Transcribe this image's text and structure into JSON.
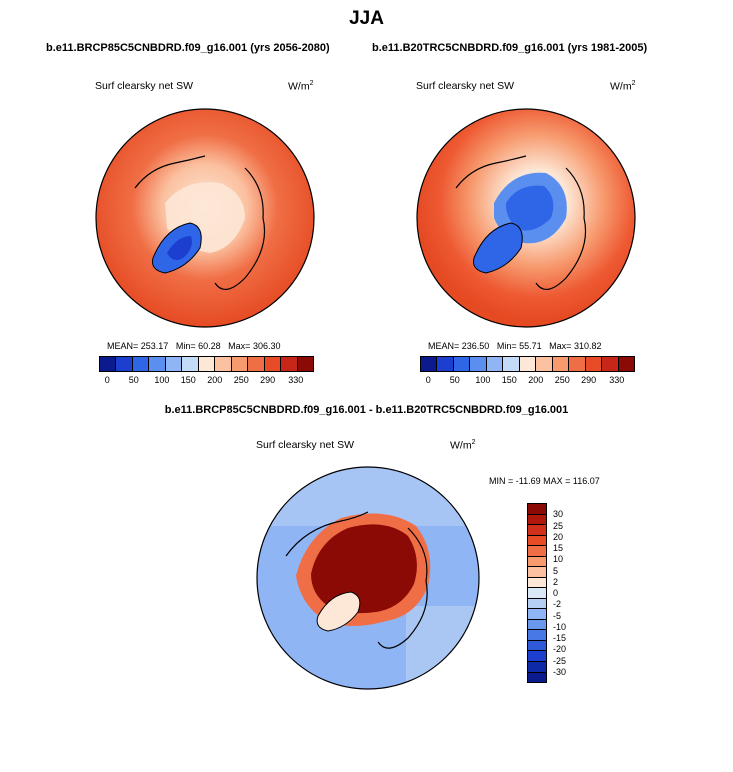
{
  "title": "JJA",
  "panels": [
    {
      "case": "b.e11.BRCP85C5CNBDRD.f09_g16.001 (yrs 2056-2080)",
      "variable": "Surf clearsky net SW",
      "units": "W/m",
      "units_sup": "2",
      "mean_label": "MEAN=",
      "mean": "253.17",
      "min_label": "Min=",
      "min": "60.28",
      "max_label": "Max=",
      "max": "306.30"
    },
    {
      "case": "b.e11.B20TRC5CNBDRD.f09_g16.001 (yrs 1981-2005)",
      "variable": "Surf clearsky net SW",
      "units": "W/m",
      "units_sup": "2",
      "mean_label": "MEAN=",
      "mean": "236.50",
      "min_label": "Min=",
      "min": "55.71",
      "max_label": "Max=",
      "max": "310.82"
    }
  ],
  "diff": {
    "case": "b.e11.BRCP85C5CNBDRD.f09_g16.001 - b.e11.B20TRC5CNBDRD.f09_g16.001",
    "variable": "Surf clearsky net SW",
    "units": "W/m",
    "units_sup": "2",
    "minmax": "MIN = -11.69 MAX = 116.07"
  },
  "colors": {
    "abs_scale": [
      "#0b1a8c",
      "#1c3fcf",
      "#2f66e8",
      "#5a8ff0",
      "#8fb5f5",
      "#c4dbf7",
      "#fde7d6",
      "#fbc1a0",
      "#f79a6e",
      "#f06e45",
      "#e84c26",
      "#c9261a",
      "#8b0a05"
    ],
    "diff_scale": [
      "#8b0a05",
      "#b0180d",
      "#d1311c",
      "#e84c26",
      "#f06e45",
      "#f79a6e",
      "#fbc1a0",
      "#fde7d6",
      "#dbe8f8",
      "#b5cff3",
      "#8fb5f5",
      "#6a98ee",
      "#4778e6",
      "#2f59d8",
      "#1c3fcf",
      "#0f2aa6",
      "#0b1a8c"
    ],
    "ocean_warm": "#ee5a33",
    "ocean_warm_outer": "#e54a23",
    "ice_cool": "#fde7d6",
    "greenland_low": "#2f66e8",
    "diff_bg": "#8fb5f5",
    "diff_hot": "#8b0a05"
  },
  "chart_data": [
    {
      "type": "heatmap",
      "projection": "north polar stereographic",
      "title": "Surf clearsky net SW",
      "case": "b.e11.BRCP85C5CNBDRD.f09_g16.001 (yrs 2056-2080)",
      "units": "W/m2",
      "mean": 253.17,
      "min": 60.28,
      "max": 306.3,
      "colorbar_ticks": [
        "0",
        "50",
        "100",
        "150",
        "200",
        "250",
        "290",
        "330"
      ]
    },
    {
      "type": "heatmap",
      "projection": "north polar stereographic",
      "title": "Surf clearsky net SW",
      "case": "b.e11.B20TRC5CNBDRD.f09_g16.001 (yrs 1981-2005)",
      "units": "W/m2",
      "mean": 236.5,
      "min": 55.71,
      "max": 310.82,
      "colorbar_ticks": [
        "0",
        "50",
        "100",
        "150",
        "200",
        "250",
        "290",
        "330"
      ]
    },
    {
      "type": "heatmap",
      "projection": "north polar stereographic",
      "title": "Surf clearsky net SW",
      "case": "b.e11.BRCP85C5CNBDRD.f09_g16.001 - b.e11.B20TRC5CNBDRD.f09_g16.001",
      "units": "W/m2",
      "min": -11.69,
      "max": 116.07,
      "colorbar_ticks": [
        "30",
        "25",
        "20",
        "15",
        "10",
        "5",
        "2",
        "0",
        "-2",
        "-5",
        "-10",
        "-15",
        "-20",
        "-25",
        "-30"
      ]
    }
  ]
}
